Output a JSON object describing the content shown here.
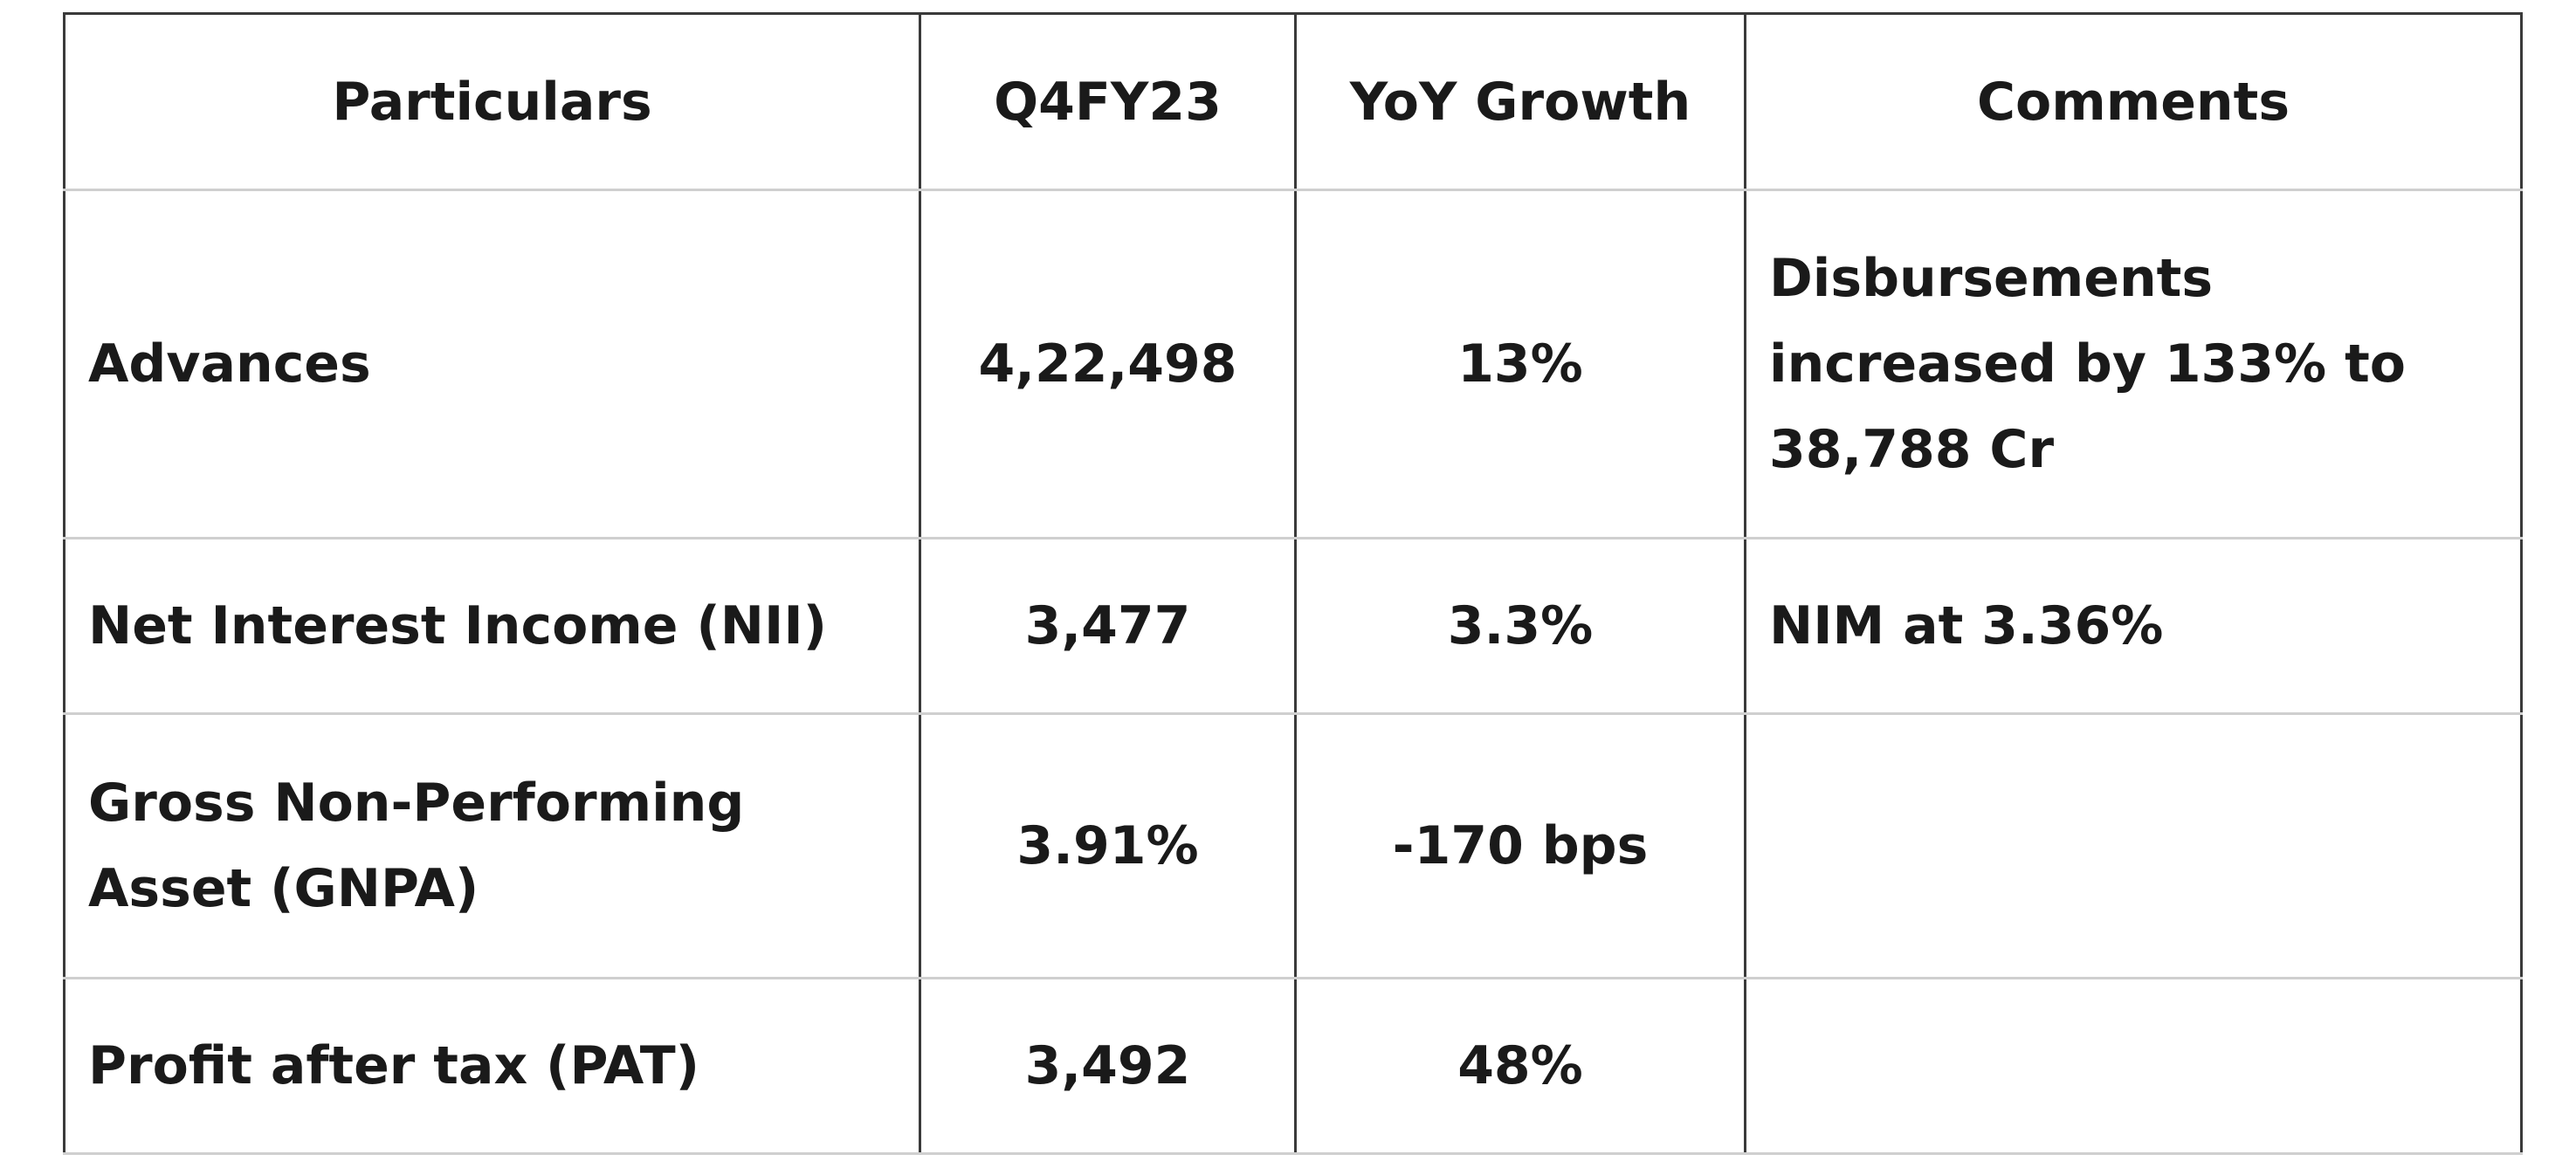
{
  "table": {
    "headers": [
      "Particulars",
      "Q4FY23",
      "YoY Growth",
      "Comments"
    ],
    "rows": [
      {
        "particular": "Advances",
        "q4fy23": "4,22,498",
        "yoy_growth": "13%",
        "comments": "Disbursements increased by 133% to 38,788 Cr"
      },
      {
        "particular": "Net Interest Income (NII)",
        "q4fy23": "3,477",
        "yoy_growth": "3.3%",
        "comments": "NIM at 3.36%"
      },
      {
        "particular": "Gross Non-Performing Asset (GNPA)",
        "q4fy23": "3.91%",
        "yoy_growth": "-170 bps",
        "comments": ""
      },
      {
        "particular": "Profit after tax (PAT)",
        "q4fy23": "3,492",
        "yoy_growth": "48%",
        "comments": ""
      }
    ]
  }
}
